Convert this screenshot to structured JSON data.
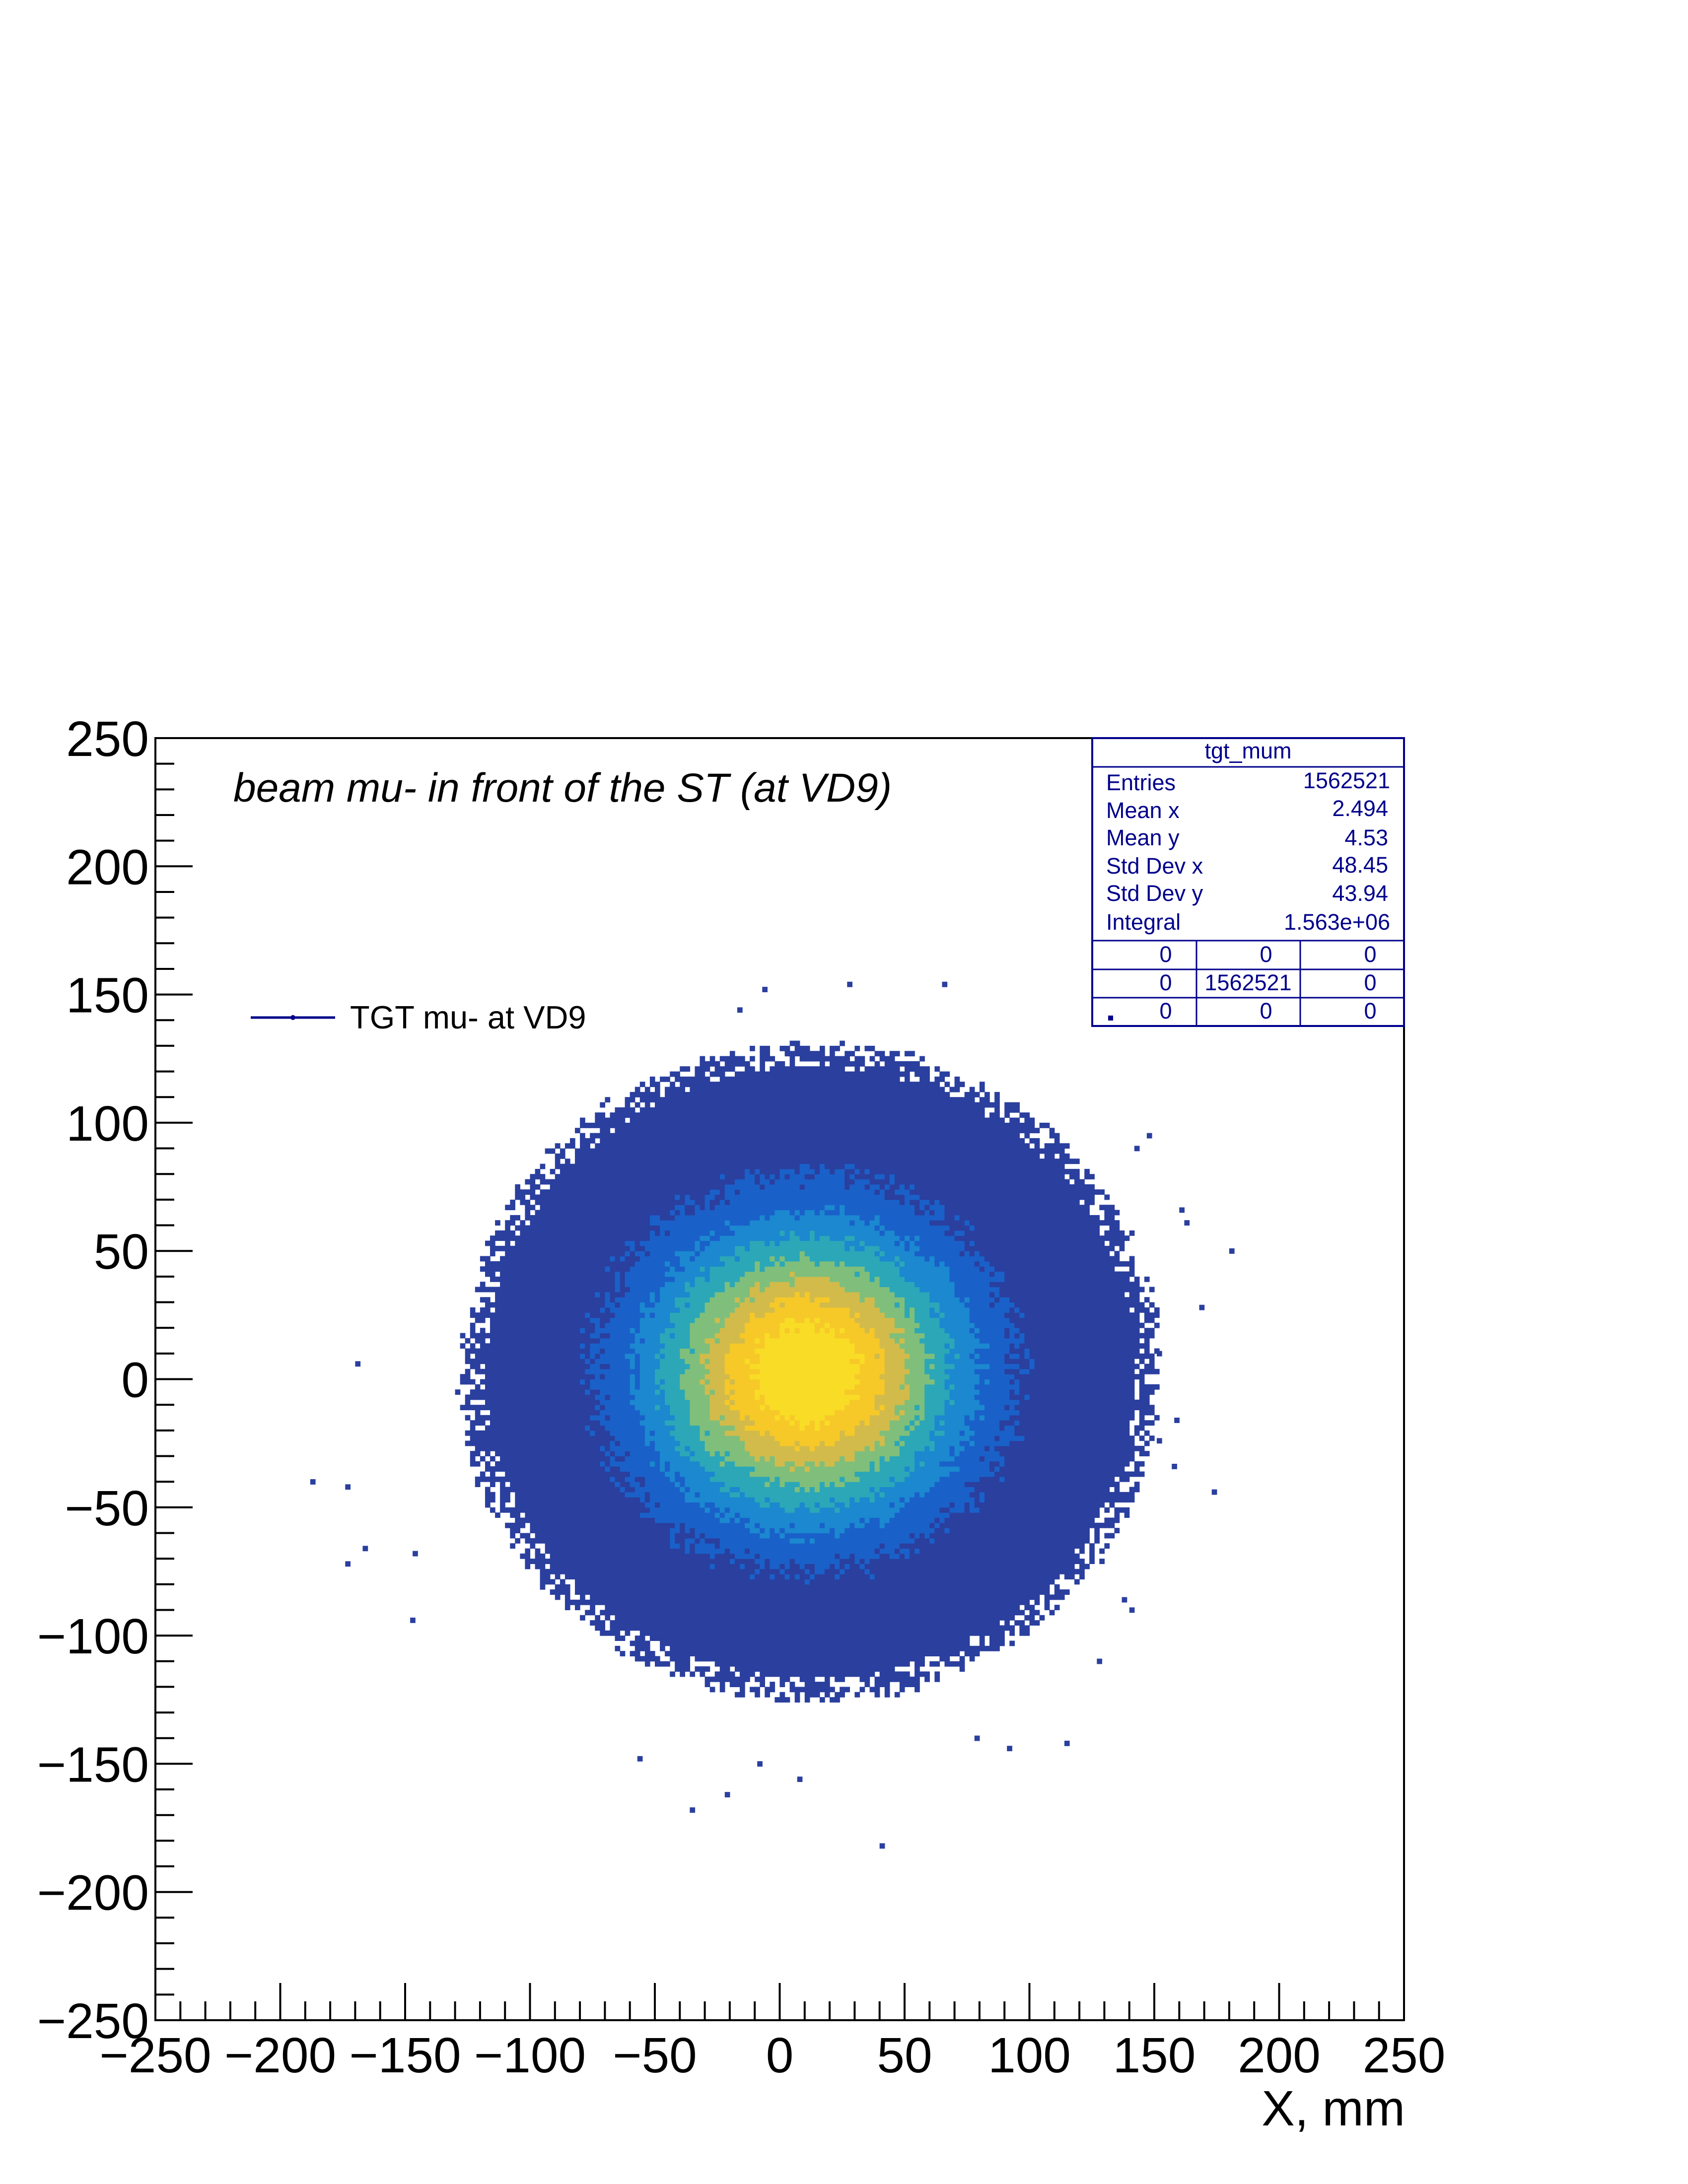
{
  "chart_data": {
    "type": "heatmap",
    "title": "beam mu- in front of the ST (at VD9)",
    "xlabel": "X, mm",
    "ylabel": "",
    "xlim": [
      -250,
      250
    ],
    "ylim": [
      -250,
      250
    ],
    "x_ticks": [
      -250,
      -200,
      -150,
      -100,
      -50,
      0,
      50,
      100,
      150,
      200,
      250
    ],
    "y_ticks": [
      -250,
      -200,
      -150,
      -100,
      -50,
      0,
      50,
      100,
      150,
      200,
      250
    ],
    "x_tick_labels": [
      "−250",
      "−200",
      "−150",
      "−100",
      "−50",
      "0",
      "50",
      "100",
      "150",
      "200",
      "250"
    ],
    "y_tick_labels": [
      "−250",
      "−200",
      "−150",
      "−100",
      "−50",
      "0",
      "50",
      "100",
      "150",
      "200",
      "250"
    ],
    "legend": {
      "label": "TGT mu- at VD9",
      "color": "#00008b",
      "position": "top-left"
    },
    "distribution": {
      "entries": 1562521,
      "mean_x": 2.494,
      "mean_y": 4.53,
      "std_x": 48.45,
      "std_y": 43.94,
      "core_radius_x": 140,
      "core_radius_y": 128,
      "bin_size_mm": 2
    },
    "outlier_points": [
      [
        -170,
        5
      ],
      [
        -188,
        -41
      ],
      [
        -174,
        -43
      ],
      [
        -167,
        -67
      ],
      [
        -174,
        -73
      ],
      [
        -147,
        -69
      ],
      [
        -148,
        -95
      ],
      [
        -7,
        151
      ],
      [
        27,
        153
      ],
      [
        65,
        153
      ],
      [
        -17,
        143
      ],
      [
        147,
        94
      ],
      [
        142,
        89
      ],
      [
        160,
        65
      ],
      [
        162,
        60
      ],
      [
        180,
        49
      ],
      [
        168,
        27
      ],
      [
        151,
        9
      ],
      [
        158,
        -17
      ],
      [
        151,
        -25
      ],
      [
        157,
        -35
      ],
      [
        173,
        -45
      ],
      [
        137,
        -87
      ],
      [
        140,
        -91
      ],
      [
        127,
        -111
      ],
      [
        114,
        -143
      ],
      [
        91,
        -145
      ],
      [
        78,
        -141
      ],
      [
        -57,
        -149
      ],
      [
        -9,
        -151
      ],
      [
        7,
        -157
      ],
      [
        -22,
        -163
      ],
      [
        -36,
        -169
      ],
      [
        40,
        -183
      ]
    ],
    "colorscale": [
      "#2a3f9e",
      "#1a60c9",
      "#1b88cf",
      "#2ba7b8",
      "#7fbf7b",
      "#d2bb4a",
      "#f6c929",
      "#f9dc25"
    ]
  },
  "stats_box": {
    "name": "tgt_mum",
    "rows": [
      {
        "label": "Entries",
        "value": "1562521"
      },
      {
        "label": "Mean x",
        "value": "2.494"
      },
      {
        "label": "Mean y",
        "value": "4.53"
      },
      {
        "label": "Std Dev x",
        "value": "48.45"
      },
      {
        "label": "Std Dev y",
        "value": "43.94"
      },
      {
        "label": "Integral",
        "value": "1.563e+06"
      }
    ],
    "grid": [
      [
        "0",
        "0",
        "0"
      ],
      [
        "0",
        "1562521",
        "0"
      ],
      [
        "0",
        "0",
        "0"
      ]
    ],
    "color": "#00008b"
  }
}
